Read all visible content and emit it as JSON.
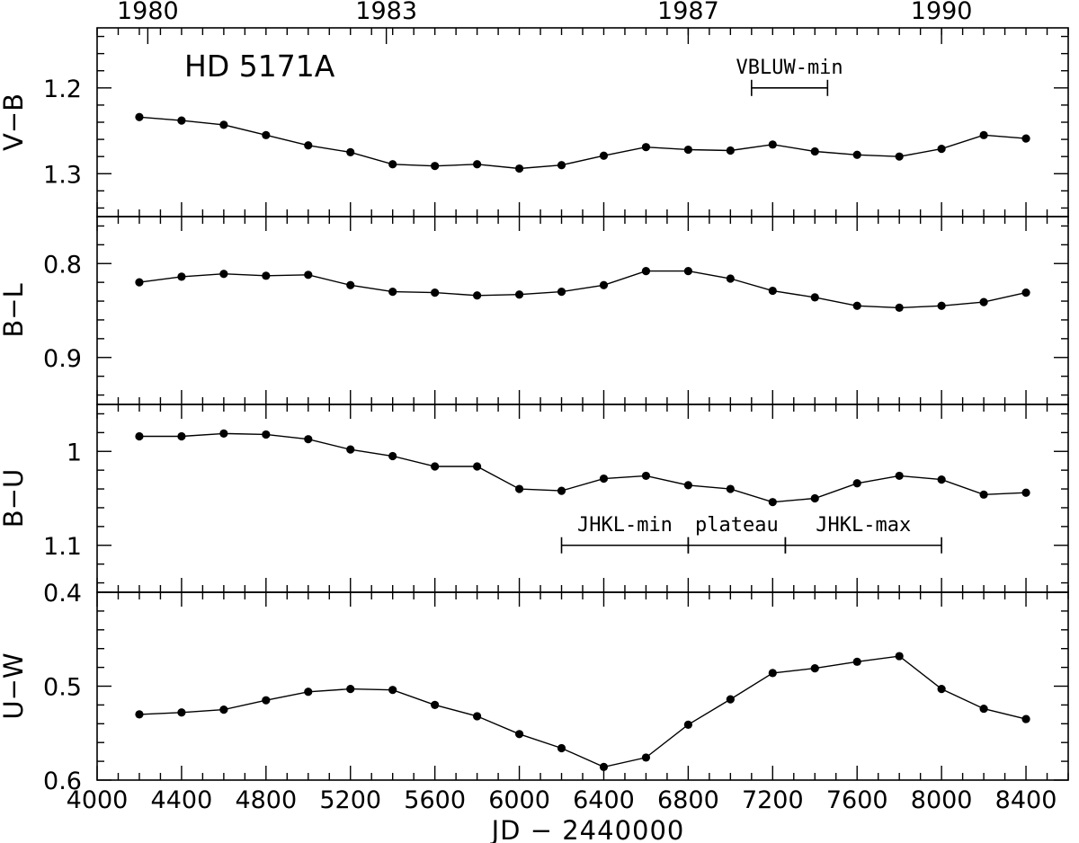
{
  "chart_data": {
    "type": "line",
    "title": "HD 5171A",
    "xlabel": "JD − 2440000",
    "xlim": [
      4000,
      8600
    ],
    "x_ticks": [
      4000,
      4400,
      4800,
      5200,
      5600,
      6000,
      6400,
      6800,
      7200,
      7600,
      8000,
      8400
    ],
    "top_axis": {
      "ticks": [
        {
          "label": "1980",
          "jd": 4240
        },
        {
          "label": "1983",
          "jd": 5370
        },
        {
          "label": "1987",
          "jd": 6800
        },
        {
          "label": "1990",
          "jd": 8000
        }
      ]
    },
    "panels": [
      {
        "ylabel": "V−B",
        "ylim": [
          1.35,
          1.13
        ],
        "y_ticks": [
          1.2,
          1.3
        ],
        "y_tick_labels": [
          "1.2",
          "1.3"
        ],
        "x": [
          4200,
          4400,
          4600,
          4800,
          5000,
          5200,
          5400,
          5600,
          5800,
          6000,
          6200,
          6400,
          6600,
          6800,
          7000,
          7200,
          7400,
          7600,
          7800,
          8000,
          8200,
          8400
        ],
        "y": [
          1.234,
          1.238,
          1.243,
          1.255,
          1.267,
          1.275,
          1.289,
          1.291,
          1.289,
          1.294,
          1.29,
          1.279,
          1.269,
          1.272,
          1.273,
          1.266,
          1.274,
          1.278,
          1.28,
          1.271,
          1.255,
          1.259
        ]
      },
      {
        "ylabel": "B−L",
        "ylim": [
          0.95,
          0.75
        ],
        "y_ticks": [
          0.8,
          0.9
        ],
        "y_tick_labels": [
          "0.8",
          "0.9"
        ],
        "x": [
          4200,
          4400,
          4600,
          4800,
          5000,
          5200,
          5400,
          5600,
          5800,
          6000,
          6200,
          6400,
          6600,
          6800,
          7000,
          7200,
          7400,
          7600,
          7800,
          8000,
          8200,
          8400
        ],
        "y": [
          0.82,
          0.814,
          0.811,
          0.813,
          0.812,
          0.823,
          0.83,
          0.831,
          0.834,
          0.833,
          0.83,
          0.823,
          0.808,
          0.808,
          0.816,
          0.829,
          0.836,
          0.845,
          0.847,
          0.845,
          0.841,
          0.831
        ]
      },
      {
        "ylabel": "B−U",
        "ylim": [
          1.15,
          0.95
        ],
        "y_ticks": [
          1.0,
          1.1
        ],
        "y_tick_labels": [
          "1",
          "1.1"
        ],
        "x": [
          4200,
          4400,
          4600,
          4800,
          5000,
          5200,
          5400,
          5600,
          5800,
          6000,
          6200,
          6400,
          6600,
          6800,
          7000,
          7200,
          7400,
          7600,
          7800,
          8000,
          8200,
          8400
        ],
        "y": [
          0.984,
          0.984,
          0.981,
          0.982,
          0.987,
          0.998,
          1.005,
          1.016,
          1.016,
          1.04,
          1.042,
          1.029,
          1.026,
          1.036,
          1.04,
          1.054,
          1.05,
          1.034,
          1.026,
          1.03,
          1.046,
          1.044
        ]
      },
      {
        "ylabel": "U−W",
        "ylim": [
          0.6,
          0.4
        ],
        "y_ticks": [
          0.4,
          0.5,
          0.6
        ],
        "y_tick_labels": [
          "0.4",
          "0.5",
          "0.6"
        ],
        "x": [
          4200,
          4400,
          4600,
          4800,
          5000,
          5200,
          5400,
          5600,
          5800,
          6000,
          6200,
          6400,
          6600,
          6800,
          7000,
          7200,
          7400,
          7600,
          7800,
          8000,
          8200,
          8400
        ],
        "y": [
          0.53,
          0.528,
          0.525,
          0.515,
          0.506,
          0.503,
          0.504,
          0.52,
          0.532,
          0.551,
          0.566,
          0.586,
          0.576,
          0.541,
          0.514,
          0.486,
          0.481,
          0.474,
          0.468,
          0.503,
          0.524,
          0.535
        ]
      }
    ],
    "annotations": [
      {
        "panel": 0,
        "text": "VBLUW-min",
        "x_start": 7100,
        "x_end": 7460,
        "y": 1.2
      },
      {
        "panel": 2,
        "text": "JHKL-min",
        "x_start": 6200,
        "x_end": 6800,
        "y": 1.1
      },
      {
        "panel": 2,
        "text": "plateau",
        "x_start": 6800,
        "x_end": 7260,
        "y": 1.1
      },
      {
        "panel": 2,
        "text": "JHKL-max",
        "x_start": 7260,
        "x_end": 8000,
        "y": 1.1
      }
    ]
  }
}
